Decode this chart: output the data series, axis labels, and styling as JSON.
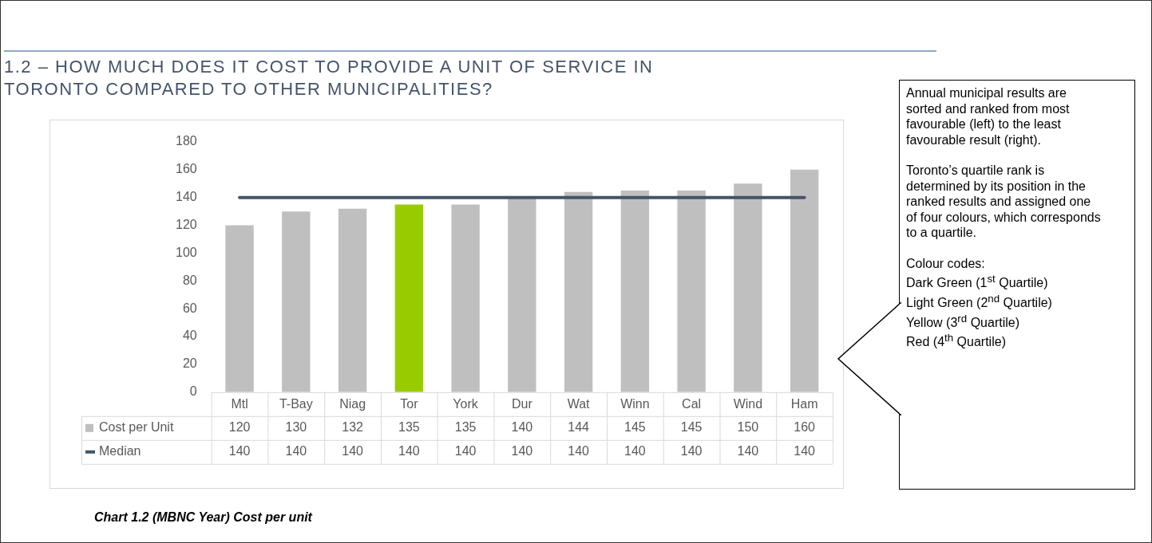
{
  "chart_data": {
    "type": "bar",
    "title": "1.2 – HOW MUCH DOES IT COST TO PROVIDE A UNIT OF SERVICE IN TORONTO COMPARED TO OTHER MUNICIPALITIES?",
    "categories": [
      "Mtl",
      "T-Bay",
      "Niag",
      "Tor",
      "York",
      "Dur",
      "Wat",
      "Winn",
      "Cal",
      "Wind",
      "Ham"
    ],
    "series": [
      {
        "name": "Cost per Unit",
        "colors": [
          "#bfbfbf",
          "#bfbfbf",
          "#bfbfbf",
          "#99cc00",
          "#bfbfbf",
          "#bfbfbf",
          "#bfbfbf",
          "#bfbfbf",
          "#bfbfbf",
          "#bfbfbf",
          "#bfbfbf"
        ],
        "values": [
          120,
          130,
          132,
          135,
          135,
          140,
          144,
          145,
          145,
          150,
          160
        ]
      },
      {
        "name": "Median",
        "type": "line",
        "color": "#44546a",
        "values": [
          140,
          140,
          140,
          140,
          140,
          140,
          140,
          140,
          140,
          140,
          140
        ]
      }
    ],
    "ylim": [
      0,
      180
    ],
    "yticks": [
      0,
      20,
      40,
      60,
      80,
      100,
      120,
      140,
      160,
      180
    ],
    "grid": false,
    "legend": "bottom left",
    "marker": "none",
    "data_labels": true,
    "annotations": [
      "Chart 1.2 (MBNC Year) Cost per unit",
      "Annual municipal results are sorted and ranked from most favourable (left) to the least favourable result (right).",
      "Toronto’s quartile rank is determined by its position in the ranked results and assigned one of four colours, which corresponds to a quartile.",
      "Colour codes:",
      "Dark Green (1$^{st}$ Quartile)",
      "Light Green (2$^{nd}$ Quartile)",
      "Yellow (3$^{rd}$ Quartile)",
      "Red (4$^{th}$ Quartile)"
    ]
  }
}
